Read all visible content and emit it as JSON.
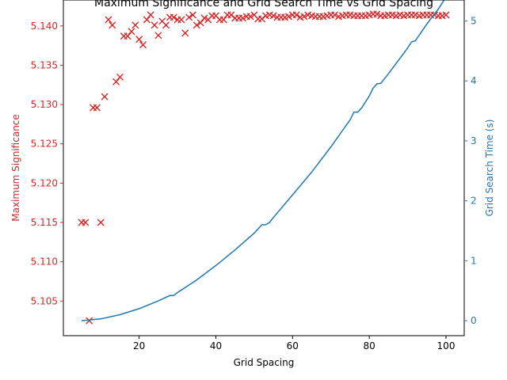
{
  "chart_data": {
    "type": "scatter+line",
    "title": "Maximum Significance and Grid Search Time vs Grid Spacing",
    "xlabel": "Grid Spacing",
    "ylabel_left": "Maximum Significance",
    "ylabel_right": "Grid Search Time (s)",
    "xlim": [
      0.25,
      104.75
    ],
    "ylim_left": [
      5.1006,
      5.1433
    ],
    "ylim_right": [
      -0.25,
      5.35
    ],
    "x_ticks": [
      20,
      40,
      60,
      80,
      100
    ],
    "y_left_ticks": [
      5.105,
      5.11,
      5.115,
      5.12,
      5.125,
      5.13,
      5.135,
      5.14
    ],
    "y_left_tick_labels": [
      "5.105",
      "5.110",
      "5.115",
      "5.120",
      "5.125",
      "5.130",
      "5.135",
      "5.140"
    ],
    "y_right_ticks": [
      0,
      1,
      2,
      3,
      4,
      5
    ],
    "grid": false,
    "legend": "none",
    "colors": {
      "left_axis": "#d62728",
      "right_axis": "#1f77b4",
      "spine": "#000000"
    },
    "series": [
      {
        "axis": "left",
        "marker": "x",
        "color": "#d62728",
        "x": [
          5,
          6,
          7,
          8,
          9,
          10,
          11,
          12,
          13,
          14,
          15,
          16,
          17,
          18,
          19,
          20,
          21,
          22,
          23,
          24,
          25,
          26,
          27,
          28,
          29,
          30,
          31,
          32,
          33,
          34,
          35,
          36,
          37,
          38,
          39,
          40,
          41,
          42,
          43,
          44,
          45,
          46,
          47,
          48,
          49,
          50,
          51,
          52,
          53,
          54,
          55,
          56,
          57,
          58,
          59,
          60,
          61,
          62,
          63,
          64,
          65,
          66,
          67,
          68,
          69,
          70,
          71,
          72,
          73,
          74,
          75,
          76,
          77,
          78,
          79,
          80,
          81,
          82,
          83,
          84,
          85,
          86,
          87,
          88,
          89,
          90,
          91,
          92,
          93,
          94,
          95,
          96,
          97,
          98,
          99,
          100
        ],
        "y": [
          5.115,
          5.115,
          5.1025,
          5.1296,
          5.1296,
          5.115,
          5.131,
          5.1408,
          5.1401,
          5.1329,
          5.1335,
          5.1387,
          5.1387,
          5.1393,
          5.1401,
          5.1383,
          5.1376,
          5.1408,
          5.1414,
          5.1401,
          5.1388,
          5.1406,
          5.1401,
          5.1411,
          5.1411,
          5.1408,
          5.1408,
          5.1391,
          5.1411,
          5.1414,
          5.1401,
          5.1404,
          5.141,
          5.1408,
          5.1413,
          5.1413,
          5.1408,
          5.1408,
          5.1414,
          5.1414,
          5.141,
          5.141,
          5.141,
          5.1412,
          5.1412,
          5.1414,
          5.1409,
          5.1409,
          5.1413,
          5.1414,
          5.1413,
          5.1411,
          5.1411,
          5.1411,
          5.1412,
          5.1414,
          5.1414,
          5.1411,
          5.1412,
          5.1414,
          5.1413,
          5.1412,
          5.1412,
          5.1412,
          5.1413,
          5.1414,
          5.1414,
          5.1412,
          5.1413,
          5.1414,
          5.1414,
          5.1413,
          5.1413,
          5.1413,
          5.1413,
          5.1414,
          5.1415,
          5.1415,
          5.1413,
          5.1413,
          5.1414,
          5.1414,
          5.1413,
          5.1414,
          5.1413,
          5.1414,
          5.1414,
          5.1414,
          5.1413,
          5.1414,
          5.1414,
          5.1414,
          5.1414,
          5.1413,
          5.1413,
          5.1414
        ]
      },
      {
        "axis": "right",
        "marker": "line",
        "color": "#1f77b4",
        "x": [
          5,
          10,
          15,
          20,
          25,
          28,
          29,
          30,
          35,
          40,
          45,
          50,
          52,
          53,
          54,
          55,
          60,
          65,
          70,
          75,
          76,
          77,
          78,
          80,
          81,
          82,
          83,
          84,
          85,
          90,
          91,
          92,
          95,
          98,
          99,
          100
        ],
        "y": [
          0.0,
          0.03,
          0.1,
          0.2,
          0.33,
          0.42,
          0.42,
          0.47,
          0.68,
          0.92,
          1.18,
          1.46,
          1.6,
          1.6,
          1.64,
          1.72,
          2.1,
          2.48,
          2.9,
          3.35,
          3.48,
          3.48,
          3.55,
          3.75,
          3.88,
          3.95,
          3.96,
          4.04,
          4.12,
          4.55,
          4.65,
          4.67,
          4.95,
          5.2,
          5.3,
          5.4
        ]
      }
    ]
  }
}
